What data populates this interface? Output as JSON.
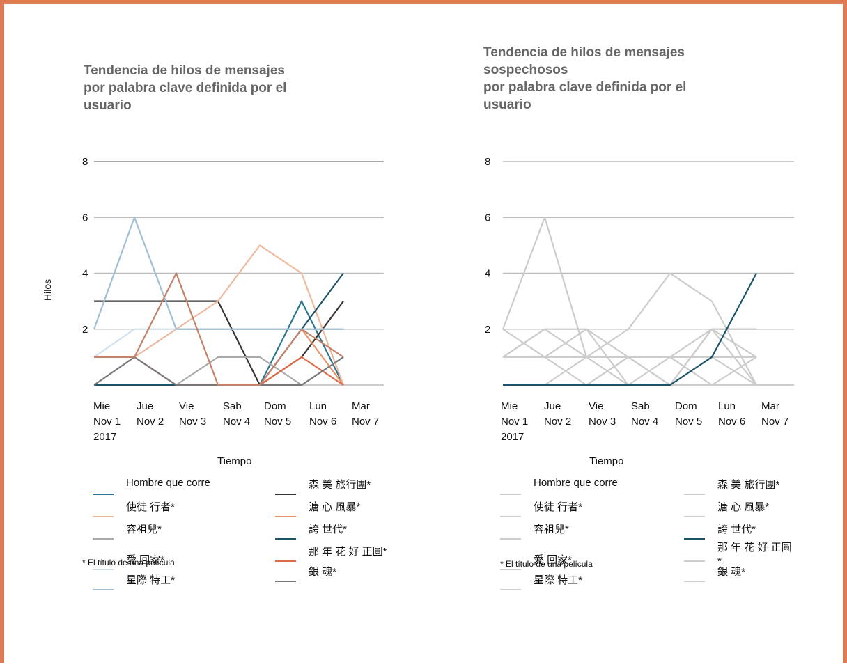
{
  "colors": {
    "border": "#e07a52",
    "grid": "#bbbbbb",
    "dimmed": "#cccccc"
  },
  "footnote": "* El título de una película",
  "legend_labels": [
    "Hombre que corre",
    "森 美 旅行團*",
    "使徒 行者*",
    "溏 心 風暴*",
    "容祖兒*",
    "誇 世代*",
    "愛 回家*",
    "那 年 花 好 正圓*",
    "星際 特工*",
    "銀 魂*"
  ],
  "chart_data": [
    {
      "type": "line",
      "title": "Tendencia de hilos de mensajes\npor palabra clave definida por el\nusuario",
      "xlabel": "Tiempo",
      "ylabel": "Hilos",
      "ylim": [
        0,
        8
      ],
      "yticks": [
        "2",
        "4",
        "6",
        "8"
      ],
      "grid": true,
      "legend_placement": "bottom",
      "categories": [
        [
          "Mie",
          "Nov 1",
          "2017"
        ],
        [
          "Jue",
          "Nov 2"
        ],
        [
          "Vie",
          "Nov 3"
        ],
        [
          "Sab",
          "Nov 4"
        ],
        [
          "Dom",
          "Nov 5"
        ],
        [
          "Lun",
          "Nov 6"
        ],
        [
          "Mar",
          "Nov 7"
        ]
      ],
      "series": [
        {
          "name": "Hombre que corre",
          "color": "#2e7690",
          "values": [
            0,
            0,
            0,
            0,
            0,
            3,
            0
          ]
        },
        {
          "name": "森 美 旅行團*",
          "color": "#333333",
          "values": [
            3,
            3,
            3,
            3,
            0,
            1,
            3
          ]
        },
        {
          "name": "使徒 行者*",
          "color": "#efb99e",
          "values": [
            1,
            1,
            2,
            3,
            5,
            4,
            0
          ]
        },
        {
          "name": "溏 心 風暴*",
          "color": "#e5956a",
          "values": [
            0,
            0,
            0,
            0,
            0,
            2,
            0
          ]
        },
        {
          "name": "容祖兒*",
          "color": "#aaaaaa",
          "values": [
            0,
            0,
            0,
            1,
            1,
            0,
            1
          ]
        },
        {
          "name": "誇 世代*",
          "color": "#1c5369",
          "values": [
            0,
            0,
            0,
            0,
            0,
            2,
            4
          ]
        },
        {
          "name": "愛 回家*",
          "color": "#cfe1ee",
          "values": [
            1,
            2,
            2,
            2,
            2,
            2,
            2
          ]
        },
        {
          "name": "那 年 花 好 正圓*",
          "color": "#e06a45",
          "values": [
            1,
            1,
            0,
            0,
            0,
            1,
            0
          ]
        },
        {
          "name": "星際 特工*",
          "color": "#9fbfd5",
          "values": [
            2,
            6,
            2,
            2,
            2,
            2,
            2
          ]
        },
        {
          "name": "銀 魂*",
          "color": "#777777",
          "values": [
            0,
            1,
            0,
            0,
            0,
            0,
            1
          ]
        },
        {
          "name": "",
          "color": "#c4826a",
          "values": [
            1,
            1,
            4,
            0,
            0,
            2,
            1
          ]
        }
      ]
    },
    {
      "type": "line",
      "title": "Tendencia de hilos de mensajes\nsospechosos\npor palabra clave definida por el\nusuario",
      "xlabel": "Tiempo",
      "ylabel": "",
      "ylim": [
        0,
        8
      ],
      "yticks": [
        "2",
        "4",
        "6",
        "8"
      ],
      "grid": true,
      "legend_placement": "bottom",
      "highlight": "誇 世代*",
      "categories": [
        [
          "Mie",
          "Nov 1",
          "2017"
        ],
        [
          "Jue",
          "Nov 2"
        ],
        [
          "Vie",
          "Nov 3"
        ],
        [
          "Sab",
          "Nov 4"
        ],
        [
          "Dom",
          "Nov 5"
        ],
        [
          "Lun",
          "Nov 6"
        ],
        [
          "Mar",
          "Nov 7"
        ]
      ],
      "series": [
        {
          "name": "Hombre que corre",
          "color": "#cccccc",
          "values": [
            0,
            0,
            0,
            0,
            0,
            2,
            1
          ]
        },
        {
          "name": "森 美 旅行團*",
          "color": "#cccccc",
          "values": [
            1,
            1,
            2,
            1,
            1,
            0,
            1
          ]
        },
        {
          "name": "使徒 行者*",
          "color": "#cccccc",
          "values": [
            2,
            6,
            1,
            2,
            4,
            3,
            0
          ]
        },
        {
          "name": "溏 心 風暴*",
          "color": "#cccccc",
          "values": [
            2,
            1,
            0,
            1,
            0,
            2,
            2
          ]
        },
        {
          "name": "容祖兒*",
          "color": "#cccccc",
          "values": [
            1,
            2,
            1,
            0,
            1,
            1,
            1
          ]
        },
        {
          "name": "誇 世代*",
          "color": "#1c5369",
          "values": [
            0,
            0,
            0,
            0,
            0,
            1,
            4
          ]
        },
        {
          "name": "愛 回家*",
          "color": "#cccccc",
          "values": [
            1,
            2,
            2,
            0,
            0,
            2,
            2
          ]
        },
        {
          "name": "那 年 花 好 正圓*",
          "color": "#cccccc",
          "values": [
            0,
            0,
            0,
            1,
            0,
            0,
            0
          ]
        },
        {
          "name": "星際 特工*",
          "color": "#cccccc",
          "values": [
            1,
            1,
            1,
            1,
            1,
            2,
            0
          ]
        },
        {
          "name": "銀 魂*",
          "color": "#cccccc",
          "values": [
            0,
            0,
            1,
            1,
            0,
            1,
            0
          ]
        }
      ]
    }
  ]
}
